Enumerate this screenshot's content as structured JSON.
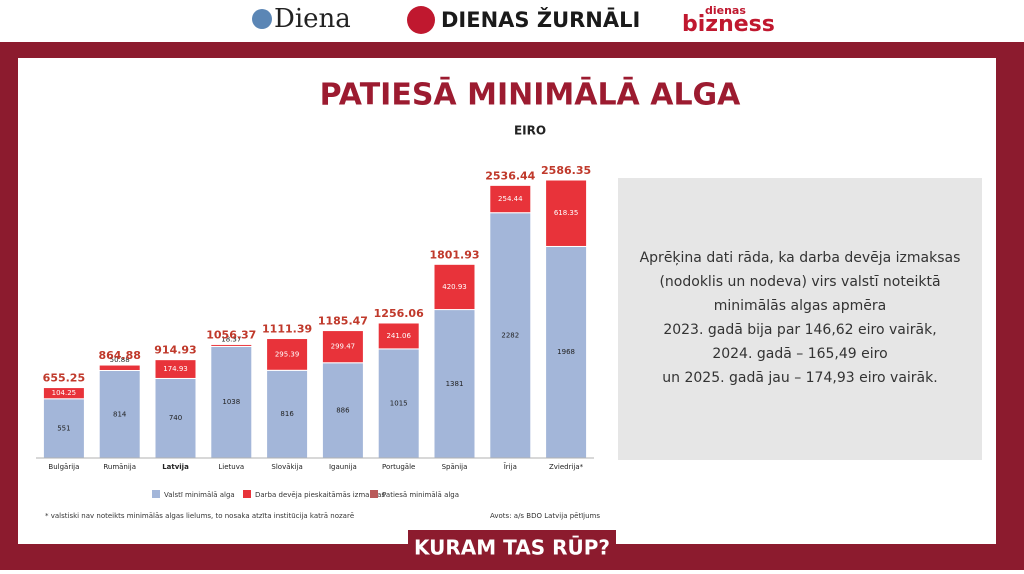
{
  "header": {
    "logos": [
      "Diena",
      "DIENAS ŽURNĀLI",
      "dienas",
      "bizness"
    ]
  },
  "chart_data": {
    "type": "bar",
    "stacked": true,
    "title": "PATIESĀ MINIMĀLĀ ALGA",
    "subtitle": "EIRO",
    "categories": [
      "Bulgārija",
      "Rumānija",
      "Latvija",
      "Lietuva",
      "Slovākija",
      "Igaunija",
      "Portugāle",
      "Spānija",
      "Īrija",
      "Zviedrija*"
    ],
    "highlight": "Latvija",
    "series": [
      {
        "name": "Valstī minimālā alga",
        "color": "#a3b6d9",
        "values": [
          551,
          814,
          740,
          1038,
          816,
          886,
          1015,
          1381,
          2282,
          1968
        ]
      },
      {
        "name": "Darba devēja pieskaitāmās izmaksas",
        "color": "#e8333a",
        "values": [
          104.25,
          50.88,
          174.93,
          18.37,
          295.39,
          299.47,
          241.06,
          420.93,
          254.44,
          618.35
        ]
      },
      {
        "name": "Patiesā minimālā alga",
        "color": "#b85a5a",
        "values": [
          655.25,
          864.88,
          914.93,
          1056.37,
          1111.39,
          1185.47,
          1256.06,
          1801.93,
          2536.44,
          2586.35
        ]
      }
    ],
    "footnote": "* valstiski nav noteikts minimālās algas lielums, to nosaka atzīta institūcija katrā nozarē",
    "source": "Avots: a/s BDO Latvija pētījums"
  },
  "note": {
    "lines": [
      "Aprēķina dati rāda, ka darba devēja izmaksas",
      "(nodoklis un nodeva) virs valstī noteiktā",
      "minimālās algas apmēra",
      "2023. gadā bija par 146,62 eiro vairāk,",
      "2024. gadā – 165,49 eiro",
      "un 2025. gadā jau – 174,93 eiro vairāk."
    ]
  },
  "footer": {
    "label": "KURAM TAS RŪP?"
  }
}
